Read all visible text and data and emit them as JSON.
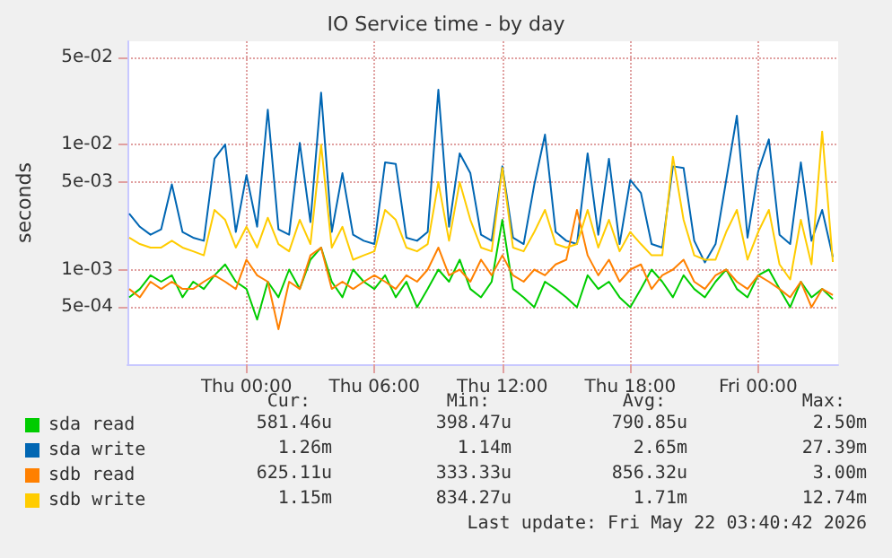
{
  "chart_data": {
    "type": "line",
    "title": "IO Service time - by day",
    "ylabel": "seconds",
    "log": "y",
    "grid": true,
    "legend": "bottom left",
    "marker": "none",
    "xlim": [
      "2026-05-20T18:25",
      "2026-05-22T03:45"
    ],
    "xticks": [
      {
        "value": "2026-05-21T00:00",
        "label": "Thu 00:00"
      },
      {
        "value": "2026-05-21T06:00",
        "label": "Thu 06:00"
      },
      {
        "value": "2026-05-21T12:00",
        "label": "Thu 12:00"
      },
      {
        "value": "2026-05-21T18:00",
        "label": "Thu 18:00"
      },
      {
        "value": "2026-05-22T00:00",
        "label": "Fri 00:00"
      }
    ],
    "ylim": [
      0.000175,
      0.067
    ],
    "yticks": [
      {
        "value": 0.0005,
        "label": "5e-04"
      },
      {
        "value": 0.001,
        "label": "1e-03"
      },
      {
        "value": 0.005,
        "label": "5e-03"
      },
      {
        "value": 0.01,
        "label": "1e-02"
      },
      {
        "value": 0.05,
        "label": "5e-02"
      }
    ],
    "x": [
      "2026-05-20T18:30",
      "2026-05-20T19:00",
      "2026-05-20T19:30",
      "2026-05-20T20:00",
      "2026-05-20T20:30",
      "2026-05-20T21:00",
      "2026-05-20T21:30",
      "2026-05-20T22:00",
      "2026-05-20T22:30",
      "2026-05-20T23:00",
      "2026-05-20T23:30",
      "2026-05-21T00:00",
      "2026-05-21T00:30",
      "2026-05-21T01:00",
      "2026-05-21T01:30",
      "2026-05-21T02:00",
      "2026-05-21T02:30",
      "2026-05-21T03:00",
      "2026-05-21T03:30",
      "2026-05-21T04:00",
      "2026-05-21T04:30",
      "2026-05-21T05:00",
      "2026-05-21T05:30",
      "2026-05-21T06:00",
      "2026-05-21T06:30",
      "2026-05-21T07:00",
      "2026-05-21T07:30",
      "2026-05-21T08:00",
      "2026-05-21T08:30",
      "2026-05-21T09:00",
      "2026-05-21T09:30",
      "2026-05-21T10:00",
      "2026-05-21T10:30",
      "2026-05-21T11:00",
      "2026-05-21T11:30",
      "2026-05-21T12:00",
      "2026-05-21T12:30",
      "2026-05-21T13:00",
      "2026-05-21T13:30",
      "2026-05-21T14:00",
      "2026-05-21T14:30",
      "2026-05-21T15:00",
      "2026-05-21T15:30",
      "2026-05-21T16:00",
      "2026-05-21T16:30",
      "2026-05-21T17:00",
      "2026-05-21T17:30",
      "2026-05-21T18:00",
      "2026-05-21T18:30",
      "2026-05-21T19:00",
      "2026-05-21T19:30",
      "2026-05-21T20:00",
      "2026-05-21T20:30",
      "2026-05-21T21:00",
      "2026-05-21T21:30",
      "2026-05-21T22:00",
      "2026-05-21T22:30",
      "2026-05-21T23:00",
      "2026-05-21T23:30",
      "2026-05-22T00:00",
      "2026-05-22T00:30",
      "2026-05-22T01:00",
      "2026-05-22T01:30",
      "2026-05-22T02:00",
      "2026-05-22T02:30",
      "2026-05-22T03:00",
      "2026-05-22T03:30"
    ],
    "series": [
      {
        "name": "sda read",
        "color": "#00cc00",
        "values": [
          0.0006,
          0.0007,
          0.0009,
          0.0008,
          0.0009,
          0.0006,
          0.0008,
          0.0007,
          0.0009,
          0.0011,
          0.0008,
          0.0007,
          0.000398,
          0.0008,
          0.0006,
          0.001,
          0.0007,
          0.0012,
          0.0015,
          0.0008,
          0.0006,
          0.001,
          0.0008,
          0.0007,
          0.0009,
          0.0006,
          0.0008,
          0.0005,
          0.0007,
          0.001,
          0.0008,
          0.0012,
          0.0007,
          0.0006,
          0.0008,
          0.0025,
          0.0007,
          0.0006,
          0.0005,
          0.0008,
          0.0007,
          0.0006,
          0.0005,
          0.0009,
          0.0007,
          0.0008,
          0.0006,
          0.0005,
          0.0007,
          0.001,
          0.0008,
          0.0006,
          0.0009,
          0.0007,
          0.0006,
          0.0008,
          0.001,
          0.0007,
          0.0006,
          0.0009,
          0.001,
          0.0007,
          0.0005,
          0.0008,
          0.0006,
          0.0007,
          0.000581
        ]
      },
      {
        "name": "sda write",
        "color": "#0066b3",
        "values": [
          0.0028,
          0.0022,
          0.0019,
          0.0021,
          0.0048,
          0.002,
          0.0018,
          0.0017,
          0.0077,
          0.01,
          0.002,
          0.0057,
          0.0022,
          0.019,
          0.0021,
          0.0019,
          0.0103,
          0.0024,
          0.026,
          0.002,
          0.0059,
          0.0019,
          0.0017,
          0.0016,
          0.0072,
          0.007,
          0.0018,
          0.0017,
          0.002,
          0.0274,
          0.0022,
          0.0085,
          0.0059,
          0.0019,
          0.0017,
          0.0067,
          0.0018,
          0.0016,
          0.0048,
          0.012,
          0.002,
          0.0017,
          0.0016,
          0.0085,
          0.0019,
          0.0077,
          0.0016,
          0.0052,
          0.0041,
          0.0016,
          0.0015,
          0.0067,
          0.0065,
          0.0017,
          0.00114,
          0.0016,
          0.0052,
          0.017,
          0.0018,
          0.0061,
          0.011,
          0.0019,
          0.0016,
          0.0072,
          0.0017,
          0.003,
          0.00126
        ]
      },
      {
        "name": "sdb read",
        "color": "#ff8000",
        "values": [
          0.0007,
          0.0006,
          0.0008,
          0.0007,
          0.0008,
          0.0007,
          0.0007,
          0.0008,
          0.0009,
          0.0008,
          0.0007,
          0.0012,
          0.0009,
          0.0008,
          0.000333,
          0.0008,
          0.0007,
          0.0013,
          0.0015,
          0.0007,
          0.0008,
          0.0007,
          0.0008,
          0.0009,
          0.0008,
          0.0007,
          0.0009,
          0.0008,
          0.001,
          0.0015,
          0.0009,
          0.001,
          0.0008,
          0.0012,
          0.0009,
          0.0013,
          0.0009,
          0.0008,
          0.001,
          0.0009,
          0.0011,
          0.0012,
          0.003,
          0.0013,
          0.0009,
          0.0012,
          0.0008,
          0.001,
          0.0011,
          0.0007,
          0.0009,
          0.001,
          0.0012,
          0.0008,
          0.0007,
          0.0009,
          0.001,
          0.0008,
          0.0007,
          0.0009,
          0.0008,
          0.0007,
          0.0006,
          0.0008,
          0.0005,
          0.0007,
          0.000625
        ]
      },
      {
        "name": "sdb write",
        "color": "#ffcc00",
        "values": [
          0.0018,
          0.0016,
          0.0015,
          0.0015,
          0.0017,
          0.0015,
          0.0014,
          0.0013,
          0.003,
          0.0025,
          0.0015,
          0.0022,
          0.0015,
          0.0026,
          0.0016,
          0.0014,
          0.0025,
          0.0016,
          0.01,
          0.0015,
          0.0022,
          0.0012,
          0.0013,
          0.0014,
          0.003,
          0.0025,
          0.0015,
          0.0014,
          0.0016,
          0.005,
          0.0017,
          0.005,
          0.0025,
          0.0015,
          0.0014,
          0.0065,
          0.0015,
          0.0014,
          0.002,
          0.003,
          0.0016,
          0.0015,
          0.0016,
          0.003,
          0.0015,
          0.0025,
          0.0014,
          0.002,
          0.0016,
          0.0013,
          0.0013,
          0.008,
          0.0025,
          0.0013,
          0.0012,
          0.0012,
          0.002,
          0.003,
          0.0012,
          0.002,
          0.003,
          0.0011,
          0.000834,
          0.0025,
          0.0011,
          0.0127,
          0.00115
        ]
      }
    ],
    "annotations": [
      "Cur:",
      "Min:",
      "Avg:",
      "Max:",
      "581.46u",
      "398.47u",
      "790.85u",
      "2.50m",
      "1.26m",
      "1.14m",
      "2.65m",
      "27.39m",
      "625.11u",
      "333.33u",
      "856.32u",
      "3.00m",
      "1.15m",
      "834.27u",
      "1.71m",
      "12.74m",
      "Last update: Fri May 22 03:40:42 2026"
    ]
  }
}
